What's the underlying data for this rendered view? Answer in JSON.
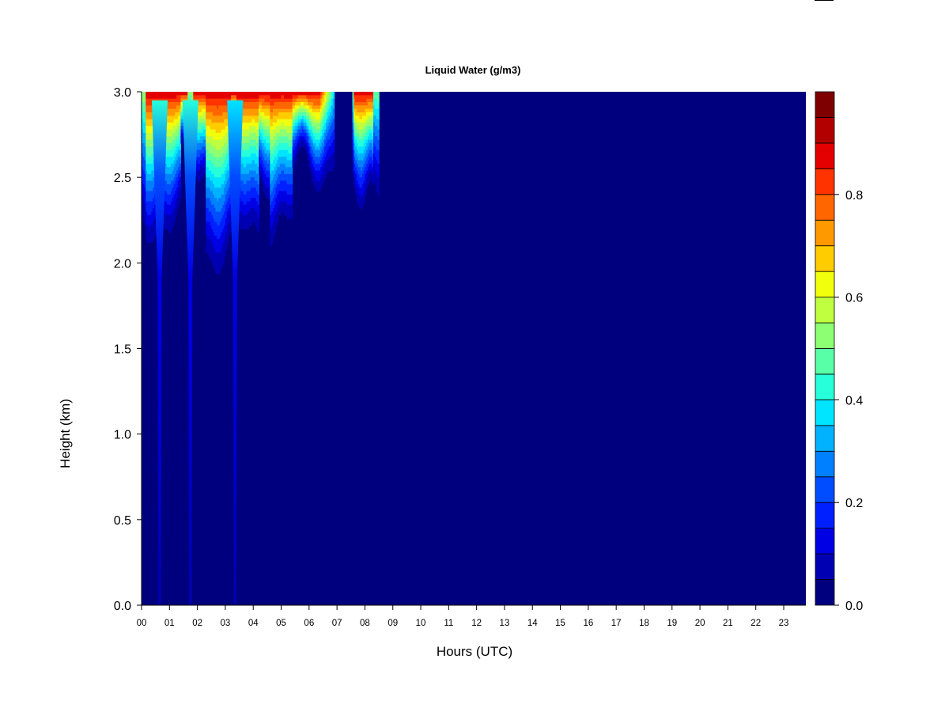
{
  "chart_data": {
    "type": "heatmap",
    "title": "Liquid Water (g/m3)",
    "xlabel": "Hours (UTC)",
    "ylabel": "Height (km)",
    "xlim": [
      0,
      23.8
    ],
    "ylim": [
      0,
      3.0
    ],
    "x_ticks": [
      "00",
      "01",
      "02",
      "03",
      "04",
      "05",
      "06",
      "07",
      "08",
      "09",
      "10",
      "11",
      "12",
      "13",
      "14",
      "15",
      "16",
      "17",
      "18",
      "19",
      "20",
      "21",
      "22",
      "23"
    ],
    "y_ticks": [
      "0.0",
      "0.5",
      "1.0",
      "1.5",
      "2.0",
      "2.5",
      "3.0"
    ],
    "colorbar": {
      "levels": [
        0.0,
        0.05,
        0.1,
        0.15,
        0.2,
        0.25,
        0.3,
        0.35,
        0.4,
        0.45,
        0.5,
        0.55,
        0.6,
        0.65,
        0.7,
        0.75,
        0.8,
        0.85,
        0.9,
        0.95
      ],
      "colors": [
        "#00007f",
        "#0000b2",
        "#0000e5",
        "#0020ff",
        "#004cff",
        "#0080ff",
        "#00b2ff",
        "#00e5ff",
        "#26ffd9",
        "#59ffa6",
        "#8cff72",
        "#bfff3f",
        "#f2ff0c",
        "#ffcc00",
        "#ff9900",
        "#ff6600",
        "#ff3300",
        "#e50000",
        "#b20000",
        "#7f0000"
      ],
      "tick_labels": [
        "0.0",
        "0.2",
        "0.4",
        "0.6",
        "0.8"
      ],
      "tick_values": [
        0.0,
        0.2,
        0.4,
        0.6,
        0.8
      ]
    },
    "cloud_episodes": [
      {
        "start_hour": 0.0,
        "end_hour": 6.9,
        "max_value": 0.9
      },
      {
        "start_hour": 7.55,
        "end_hour": 8.5,
        "max_value": 0.9
      }
    ],
    "vertical_streaks": [
      {
        "hour": 0.65,
        "top_value": 0.4,
        "base_height_km": 0.0
      },
      {
        "hour": 1.75,
        "top_value": 0.4,
        "base_height_km": 0.0
      },
      {
        "hour": 3.35,
        "top_value": 0.35,
        "base_height_km": 0.0
      }
    ]
  }
}
